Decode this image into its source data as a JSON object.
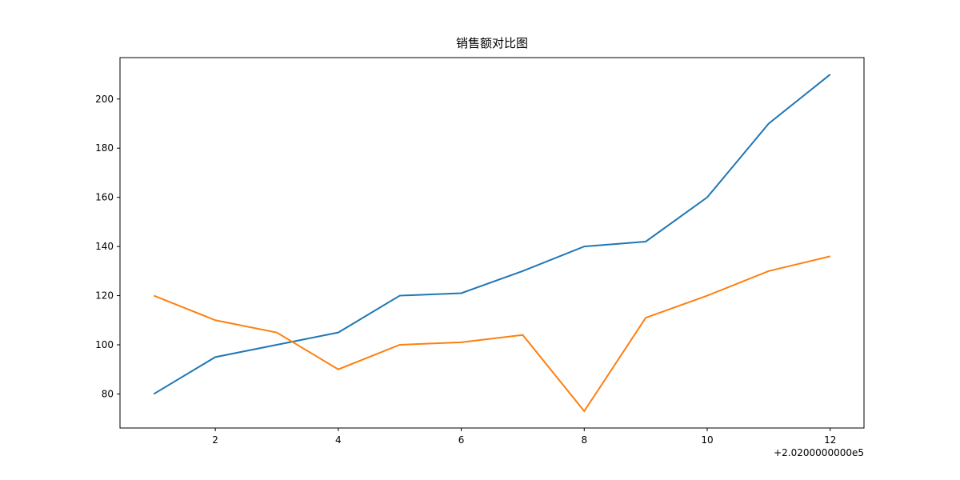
{
  "chart_data": {
    "type": "line",
    "title": "销售额对比图",
    "x": [
      1,
      2,
      3,
      4,
      5,
      6,
      7,
      8,
      9,
      10,
      11,
      12
    ],
    "series": [
      {
        "color": "#1f77b4",
        "values": [
          80,
          95,
          100,
          105,
          120,
          121,
          130,
          140,
          142,
          160,
          190,
          210
        ]
      },
      {
        "color": "#ff7f0e",
        "values": [
          120,
          110,
          105,
          90,
          100,
          101,
          104,
          73,
          111,
          120,
          130,
          136
        ]
      }
    ],
    "xlim": [
      0.45,
      12.55
    ],
    "xticks": [
      2,
      4,
      6,
      8,
      10,
      12
    ],
    "x_offset_label": "+2.0200000000e5",
    "ylim": [
      66.15,
      216.85
    ],
    "yticks": [
      80,
      100,
      120,
      140,
      160,
      180,
      200
    ],
    "grid": false
  }
}
